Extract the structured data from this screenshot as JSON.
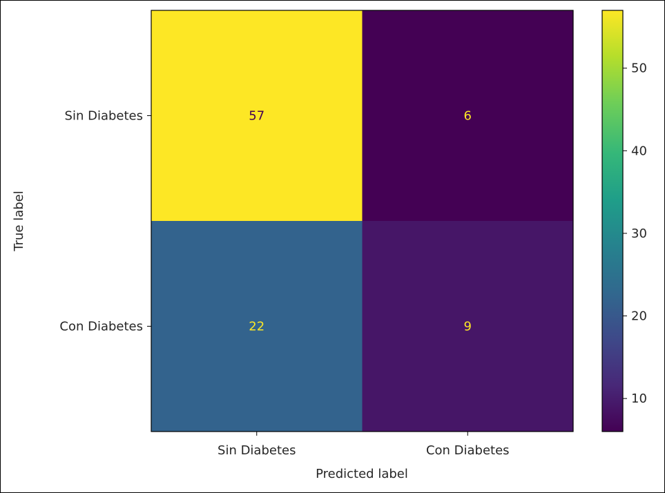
{
  "chart_data": {
    "type": "heatmap",
    "title": "",
    "xlabel": "Predicted label",
    "ylabel": "True label",
    "x_categories": [
      "Sin Diabetes",
      "Con Diabetes"
    ],
    "y_categories": [
      "Sin Diabetes",
      "Con Diabetes"
    ],
    "matrix": [
      [
        57,
        6
      ],
      [
        22,
        9
      ]
    ],
    "colormap": "viridis",
    "colorbar": {
      "ticks": [
        10,
        20,
        30,
        40,
        50
      ],
      "tick_labels": [
        "10",
        "20",
        "30",
        "40",
        "50"
      ],
      "range": [
        6,
        57
      ]
    },
    "text_colors": {
      "on_dark": "#fde725",
      "on_light": "#440154"
    }
  }
}
